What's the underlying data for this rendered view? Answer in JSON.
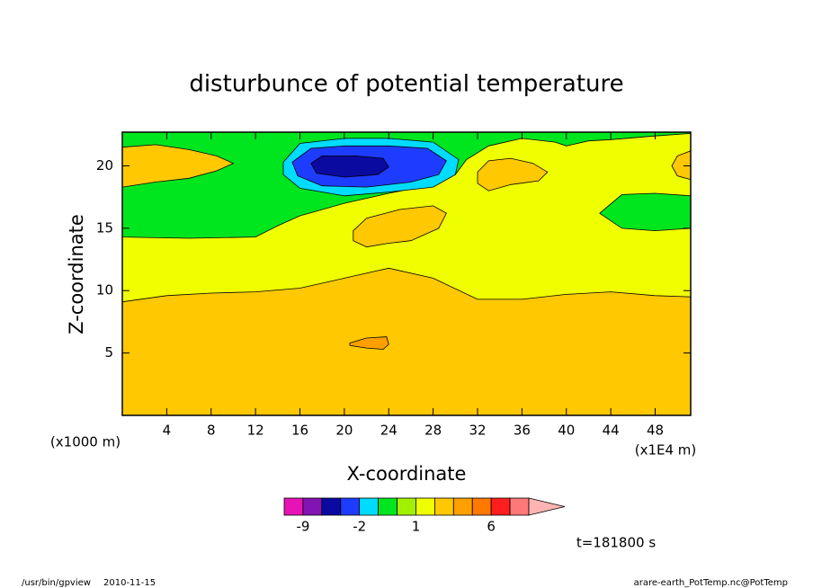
{
  "chart_data": {
    "type": "contour",
    "title": "disturbunce of potential temperature",
    "xlabel": "X-coordinate",
    "ylabel": "Z-coordinate",
    "x_unit_label": "(x1000 m)",
    "x_factor_label": "(x1E4 m)",
    "time_label": "t=181800 s",
    "footer_left": "/usr/bin/gpview",
    "footer_date": "2010-11-15",
    "footer_right": "arare-earth_PotTemp.nc@PotTemp",
    "xlim": [
      0,
      51.2
    ],
    "ylim": [
      0,
      22.7
    ],
    "xticks": [
      4,
      8,
      12,
      16,
      20,
      24,
      28,
      32,
      36,
      40,
      44,
      48
    ],
    "yticks": [
      5,
      10,
      15,
      20
    ],
    "colorbar": {
      "levels": [
        -12,
        -9,
        -6,
        -3,
        -2,
        -1,
        0,
        1,
        2,
        3,
        4,
        6,
        9,
        12
      ],
      "colors": [
        "#e614b4",
        "#8214b4",
        "#0a0aa0",
        "#1e3cff",
        "#00dcff",
        "#00e61e",
        "#a0f000",
        "#f0ff00",
        "#ffc800",
        "#ffa000",
        "#ff7800",
        "#ff1e1e",
        "#ff7878",
        "#ffb4b4"
      ],
      "ticks": [
        -9,
        -2,
        1,
        6
      ]
    },
    "regions": [
      {
        "level": 2.5,
        "x": [
          0,
          51.2,
          51.2,
          0
        ],
        "y": [
          0,
          0,
          22.7,
          22.7
        ]
      },
      {
        "level": 1.5,
        "x": [
          0,
          4,
          8,
          12,
          16,
          20,
          23,
          24,
          28,
          32,
          36,
          40,
          44,
          48,
          51.2,
          51.2,
          0
        ],
        "y": [
          9.1,
          9.6,
          9.8,
          9.9,
          10.2,
          11,
          11.6,
          11.8,
          11,
          9.3,
          9.3,
          9.7,
          9.9,
          9.6,
          9.5,
          22.7,
          22.7
        ]
      },
      {
        "level": -0.5,
        "x": [
          0,
          0,
          6,
          12,
          14,
          16,
          20,
          24,
          28,
          30,
          31,
          33,
          36,
          39,
          40,
          42,
          44,
          48,
          51.2,
          51.2
        ],
        "y": [
          22.7,
          14.3,
          14.2,
          14.3,
          15.2,
          16,
          17,
          17.8,
          18.5,
          19.3,
          20.5,
          21.6,
          22.2,
          21.9,
          21.6,
          22,
          22.1,
          22.4,
          22.6,
          22.7
        ]
      },
      {
        "level": -0.5,
        "x": [
          43,
          45,
          48,
          51.2,
          51.2,
          48,
          45,
          43
        ],
        "y": [
          16.2,
          17.7,
          17.8,
          17.6,
          15,
          14.8,
          15,
          16.2
        ]
      },
      {
        "level": 2.5,
        "x": [
          0,
          3,
          6,
          8.5,
          10,
          8.5,
          6,
          3,
          0
        ],
        "y": [
          21.5,
          21.7,
          21.3,
          20.8,
          20.2,
          19.6,
          19,
          18.7,
          18.3
        ]
      },
      {
        "level": 2.5,
        "x": [
          51.2,
          50,
          49.5,
          50,
          51.2
        ],
        "y": [
          21.2,
          20.8,
          20,
          19.2,
          18.9
        ]
      },
      {
        "level": 2.5,
        "x": [
          32,
          33,
          35,
          37,
          38.3,
          37.5,
          35,
          33,
          32
        ],
        "y": [
          19.5,
          20.4,
          20.6,
          20.2,
          19.5,
          18.8,
          18.5,
          18,
          18.6
        ]
      },
      {
        "level": 2.5,
        "x": [
          20.8,
          22,
          25,
          28,
          29.2,
          28.5,
          26,
          24,
          22,
          20.8
        ],
        "y": [
          14.8,
          15.8,
          16.5,
          16.8,
          16.2,
          15,
          14,
          13.8,
          13.5,
          14
        ]
      },
      {
        "level": -1.5,
        "x": [
          14.5,
          16,
          20,
          24,
          28,
          30.3,
          30,
          28,
          24,
          20,
          16,
          14.5
        ],
        "y": [
          20.3,
          21.8,
          22.2,
          22.2,
          21.9,
          20.5,
          19.3,
          18.3,
          17.9,
          17.6,
          18.2,
          19.3
        ]
      },
      {
        "level": -2.5,
        "x": [
          15.3,
          17,
          20,
          24,
          27.5,
          29.2,
          28.5,
          26,
          22,
          18,
          15.8
        ],
        "y": [
          20.3,
          21.4,
          21.6,
          21.6,
          21.4,
          20.4,
          19.3,
          18.7,
          18.3,
          18.4,
          19.2
        ]
      },
      {
        "level": -4,
        "x": [
          17,
          18,
          21,
          23.5,
          24,
          23,
          20,
          17.5
        ],
        "y": [
          20.2,
          20.8,
          20.8,
          20.6,
          19.9,
          19.3,
          19.1,
          19.4
        ]
      },
      {
        "level": 3.5,
        "x": [
          20.5,
          22,
          23.8,
          24,
          23.5,
          22,
          20.5
        ],
        "y": [
          5.8,
          6.2,
          6.3,
          5.7,
          5.3,
          5.4,
          5.6
        ]
      }
    ]
  }
}
